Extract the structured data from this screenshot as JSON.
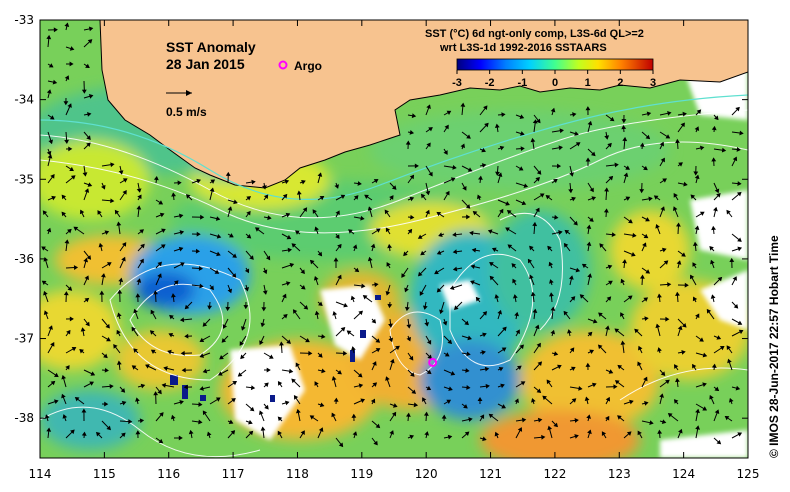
{
  "map": {
    "title": "SST Anomaly",
    "date": "28 Jan 2015",
    "argo_label": "Argo",
    "scale_label": "0.5 m/s",
    "product_line1": "SST (°C) 6d ngt-only comp, L3S-6d QL>=2",
    "product_line2": "wrt L3S-1d 1992-2016 SSTAARS",
    "credit": "© IMOS 28-Jun-2017 22:57 Hobart Time",
    "lon_ticks": [
      "114",
      "115",
      "116",
      "117",
      "118",
      "119",
      "120",
      "121",
      "122",
      "123",
      "124",
      "125"
    ],
    "lat_ticks": [
      "-33",
      "-34",
      "-35",
      "-36",
      "-37",
      "-38"
    ],
    "colorbar_ticks": [
      "-3",
      "-2",
      "-1",
      "0",
      "1",
      "2",
      "3"
    ],
    "colorbar_range": [
      -3,
      3
    ],
    "lon_range": [
      114,
      125
    ],
    "lat_range": [
      -38.5,
      -33
    ],
    "argo_floats": [
      {
        "lon": 117.8,
        "lat": -33.6
      },
      {
        "lon": 120.1,
        "lat": -37.3
      }
    ],
    "colors": {
      "land": "#f7c38f",
      "ocean_base": "#7ad65a",
      "argo_marker": "#ff00ff",
      "contour": "#ffffff",
      "shelf_contour": "#5fe0d0"
    }
  }
}
